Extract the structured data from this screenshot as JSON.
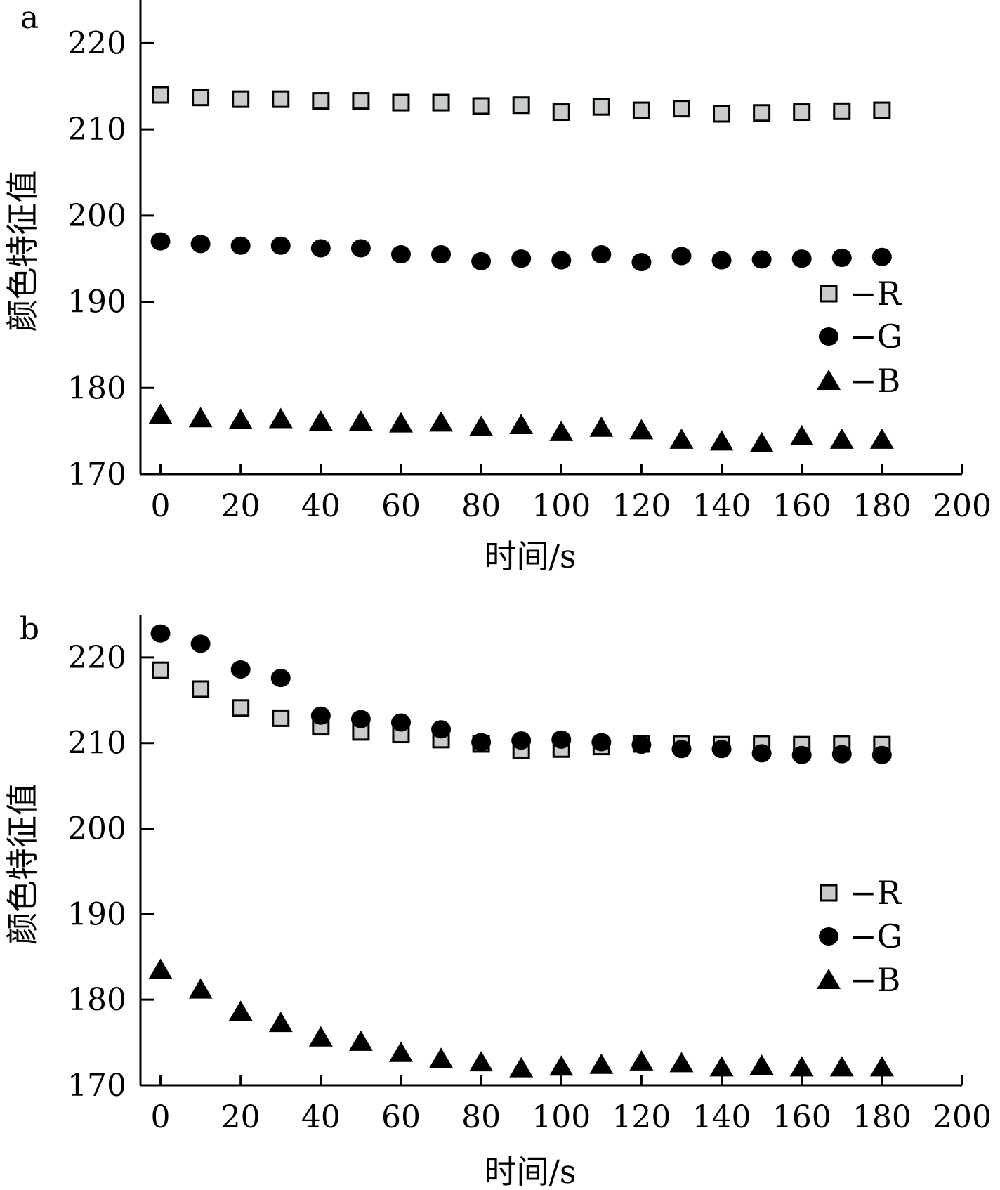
{
  "chart_data": [
    {
      "panel_label": "a",
      "type": "scatter",
      "xlabel": "时间/s",
      "ylabel": "颜色特征值",
      "xlim": [
        -5,
        200
      ],
      "ylim": [
        170,
        225
      ],
      "xticks": [
        0,
        20,
        40,
        60,
        80,
        100,
        120,
        140,
        160,
        180,
        200
      ],
      "yticks": [
        170,
        180,
        190,
        200,
        210,
        220
      ],
      "legend_position": "right",
      "x": [
        0,
        10,
        20,
        30,
        40,
        50,
        60,
        70,
        80,
        90,
        100,
        110,
        120,
        130,
        140,
        150,
        160,
        170,
        180
      ],
      "series": [
        {
          "name": "−R",
          "marker": "square",
          "color": "#c8cdcb",
          "values": [
            214.0,
            213.7,
            213.5,
            213.5,
            213.3,
            213.3,
            213.1,
            213.1,
            212.7,
            212.8,
            212.0,
            212.6,
            212.2,
            212.4,
            211.8,
            211.9,
            212.0,
            212.1,
            212.2
          ]
        },
        {
          "name": "−G",
          "marker": "circle",
          "color": "#000000",
          "values": [
            197.0,
            196.7,
            196.5,
            196.5,
            196.2,
            196.2,
            195.5,
            195.5,
            194.7,
            195.0,
            194.8,
            195.5,
            194.6,
            195.3,
            194.8,
            194.9,
            195.0,
            195.1,
            195.2
          ]
        },
        {
          "name": "−B",
          "marker": "triangle",
          "color": "#000000",
          "values": [
            176.9,
            176.5,
            176.3,
            176.4,
            176.1,
            176.1,
            175.9,
            176.0,
            175.5,
            175.7,
            174.9,
            175.4,
            175.1,
            174.0,
            173.8,
            173.6,
            174.4,
            174.0,
            174.0
          ]
        }
      ]
    },
    {
      "panel_label": "b",
      "type": "scatter",
      "xlabel": "时间/s",
      "ylabel": "颜色特征值",
      "xlim": [
        -5,
        200
      ],
      "ylim": [
        170,
        225
      ],
      "xticks": [
        0,
        20,
        40,
        60,
        80,
        100,
        120,
        140,
        160,
        180,
        200
      ],
      "yticks": [
        170,
        180,
        190,
        200,
        210,
        220
      ],
      "legend_position": "right",
      "x": [
        0,
        10,
        20,
        30,
        40,
        50,
        60,
        70,
        80,
        90,
        100,
        110,
        120,
        130,
        140,
        150,
        160,
        170,
        180
      ],
      "series": [
        {
          "name": "−R",
          "marker": "square",
          "color": "#c8cdcb",
          "values": [
            218.5,
            216.3,
            214.1,
            212.9,
            211.9,
            211.3,
            211.0,
            210.4,
            209.9,
            209.2,
            209.3,
            209.6,
            209.9,
            209.9,
            209.8,
            209.9,
            209.8,
            209.9,
            209.8
          ]
        },
        {
          "name": "−G",
          "marker": "circle",
          "color": "#000000",
          "values": [
            222.8,
            221.6,
            218.6,
            217.6,
            213.2,
            212.8,
            212.4,
            211.6,
            210.1,
            210.3,
            210.4,
            210.1,
            209.8,
            209.3,
            209.3,
            208.8,
            208.6,
            208.7,
            208.6
          ]
        },
        {
          "name": "−B",
          "marker": "triangle",
          "color": "#000000",
          "values": [
            183.5,
            181.2,
            178.6,
            177.3,
            175.6,
            175.1,
            173.8,
            173.1,
            172.7,
            172.0,
            172.2,
            172.4,
            172.8,
            172.6,
            172.1,
            172.3,
            172.1,
            172.1,
            172.1
          ]
        }
      ]
    }
  ]
}
